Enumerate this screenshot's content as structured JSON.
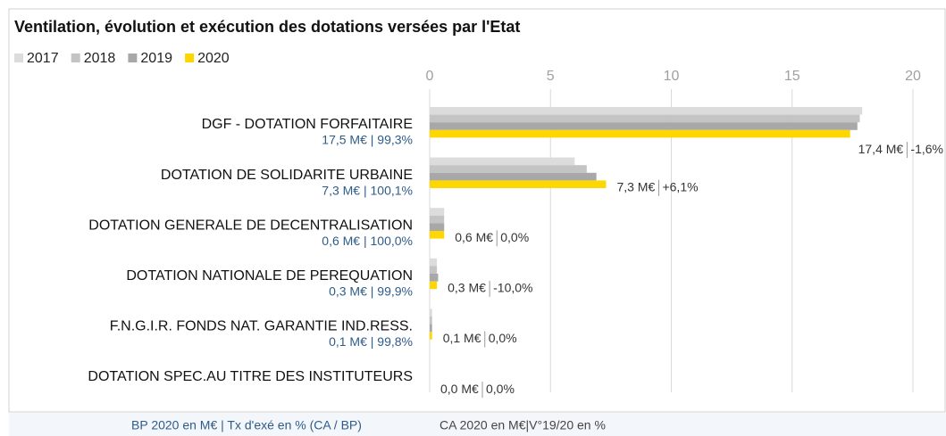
{
  "chart_data": {
    "type": "bar",
    "orientation": "horizontal",
    "title": "Ventilation, évolution et exécution des dotations versées par l'Etat",
    "categories": [
      "DGF - DOTATION FORFAITAIRE",
      "DOTATION DE SOLIDARITE URBAINE",
      "DOTATION GENERALE DE DECENTRALISATION",
      "DOTATION NATIONALE DE PEREQUATION",
      "F.N.G.I.R. FONDS NAT. GARANTIE IND.RESS.",
      "DOTATION SPEC.AU TITRE DES INSTITUTEURS"
    ],
    "category_notes": [
      "17,5 M€ | 99,3%",
      "7,3 M€ | 100,1%",
      "0,6 M€ | 100,0%",
      "0,3 M€ | 99,9%",
      "0,1 M€ | 99,8%",
      null
    ],
    "series": [
      {
        "name": "2017",
        "color": "#dcdcdc",
        "values": [
          17.9,
          6.0,
          0.6,
          0.3,
          0.1,
          0
        ]
      },
      {
        "name": "2018",
        "color": "#c4c4c4",
        "values": [
          17.8,
          6.5,
          0.6,
          0.3,
          0.1,
          0
        ]
      },
      {
        "name": "2019",
        "color": "#a8a8a8",
        "values": [
          17.7,
          6.9,
          0.6,
          0.35,
          0.1,
          0
        ]
      },
      {
        "name": "2020",
        "color": "#ffd700",
        "values": [
          17.4,
          7.3,
          0.6,
          0.3,
          0.1,
          0
        ],
        "value_labels": [
          "17,4 M€",
          "7,3 M€",
          "0,6 M€",
          "0,3 M€",
          "0,1 M€",
          "0,0 M€"
        ]
      }
    ],
    "change_labels": [
      "-1,6%",
      "+6,1%",
      "0,0%",
      "-10,0%",
      "0,0%",
      "0,0%"
    ],
    "xlim": [
      0,
      20
    ],
    "xticks": [
      0,
      5,
      10,
      15,
      20
    ],
    "grid": true,
    "legend": "top-left",
    "footer": [
      "BP 2020 en M€ | Tx d'exé en % (CA / BP)",
      "CA 2020 en M€|V°19/20 en %"
    ]
  }
}
